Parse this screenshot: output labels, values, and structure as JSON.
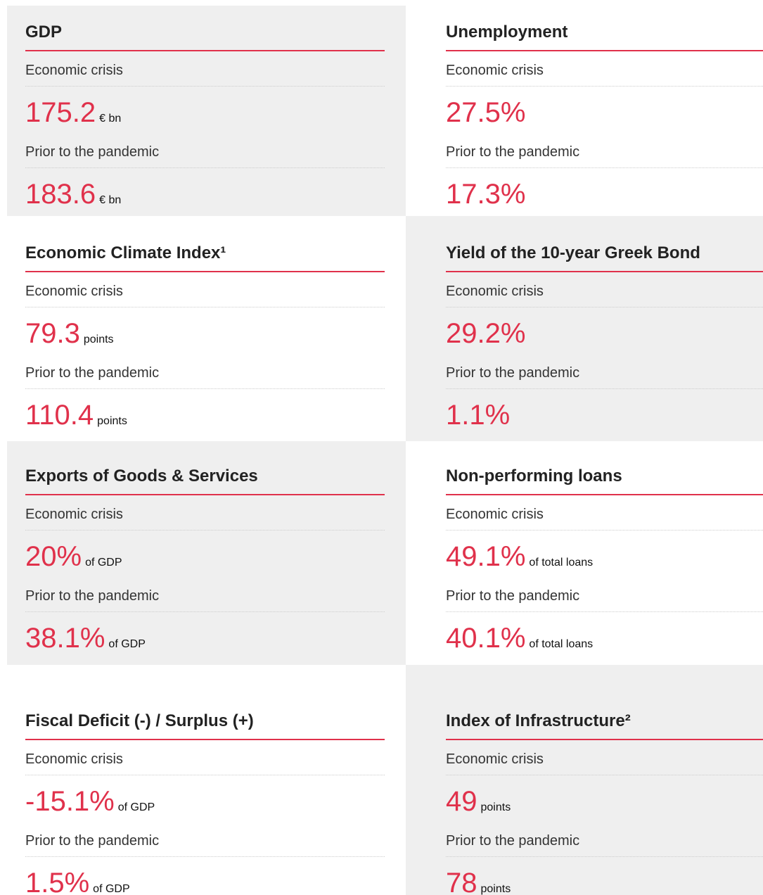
{
  "cards": [
    {
      "title": "GDP",
      "rows": [
        {
          "label": "Economic crisis",
          "value": "175.2",
          "unit": "€ bn"
        },
        {
          "label": "Prior to the pandemic",
          "value": "183.6",
          "unit": "€ bn"
        }
      ]
    },
    {
      "title": "Unemployment",
      "rows": [
        {
          "label": "Economic crisis",
          "value": "27.5%"
        },
        {
          "label": "Prior to the pandemic",
          "value": "17.3%"
        }
      ]
    },
    {
      "title": "Economic Climate Index¹",
      "rows": [
        {
          "label": "Economic crisis",
          "value": "79.3",
          "unit": "points"
        },
        {
          "label": "Prior to the pandemic",
          "value": "110.4",
          "unit": "points"
        }
      ]
    },
    {
      "title": "Yield of the 10-year Greek Bond",
      "rows": [
        {
          "label": "Economic crisis",
          "value": "29.2%"
        },
        {
          "label": "Prior to the pandemic",
          "value": "1.1%"
        }
      ]
    },
    {
      "title": "Exports of Goods & Services",
      "rows": [
        {
          "label": "Economic crisis",
          "value": "20%",
          "unit": "of GDP"
        },
        {
          "label": "Prior to the pandemic",
          "value": "38.1%",
          "unit": "of GDP"
        }
      ]
    },
    {
      "title": "Non-performing loans",
      "rows": [
        {
          "label": "Economic crisis",
          "value": "49.1%",
          "unit": "of total loans"
        },
        {
          "label": "Prior to the pandemic",
          "value": "40.1%",
          "unit": "of total loans"
        }
      ]
    },
    {
      "title": "Fiscal Deficit (-) / Surplus (+)",
      "rows": [
        {
          "label": "Economic crisis",
          "value": "-15.1%",
          "unit": "of GDP"
        },
        {
          "label": "Prior to the pandemic",
          "value": "1.5%",
          "unit": "of GDP"
        }
      ]
    },
    {
      "title": "Index of Infrastructure²",
      "rows": [
        {
          "label": "Economic crisis",
          "value": "49",
          "unit": "points"
        },
        {
          "label": "Prior to the pandemic",
          "value": "78",
          "unit": "points"
        }
      ]
    }
  ]
}
